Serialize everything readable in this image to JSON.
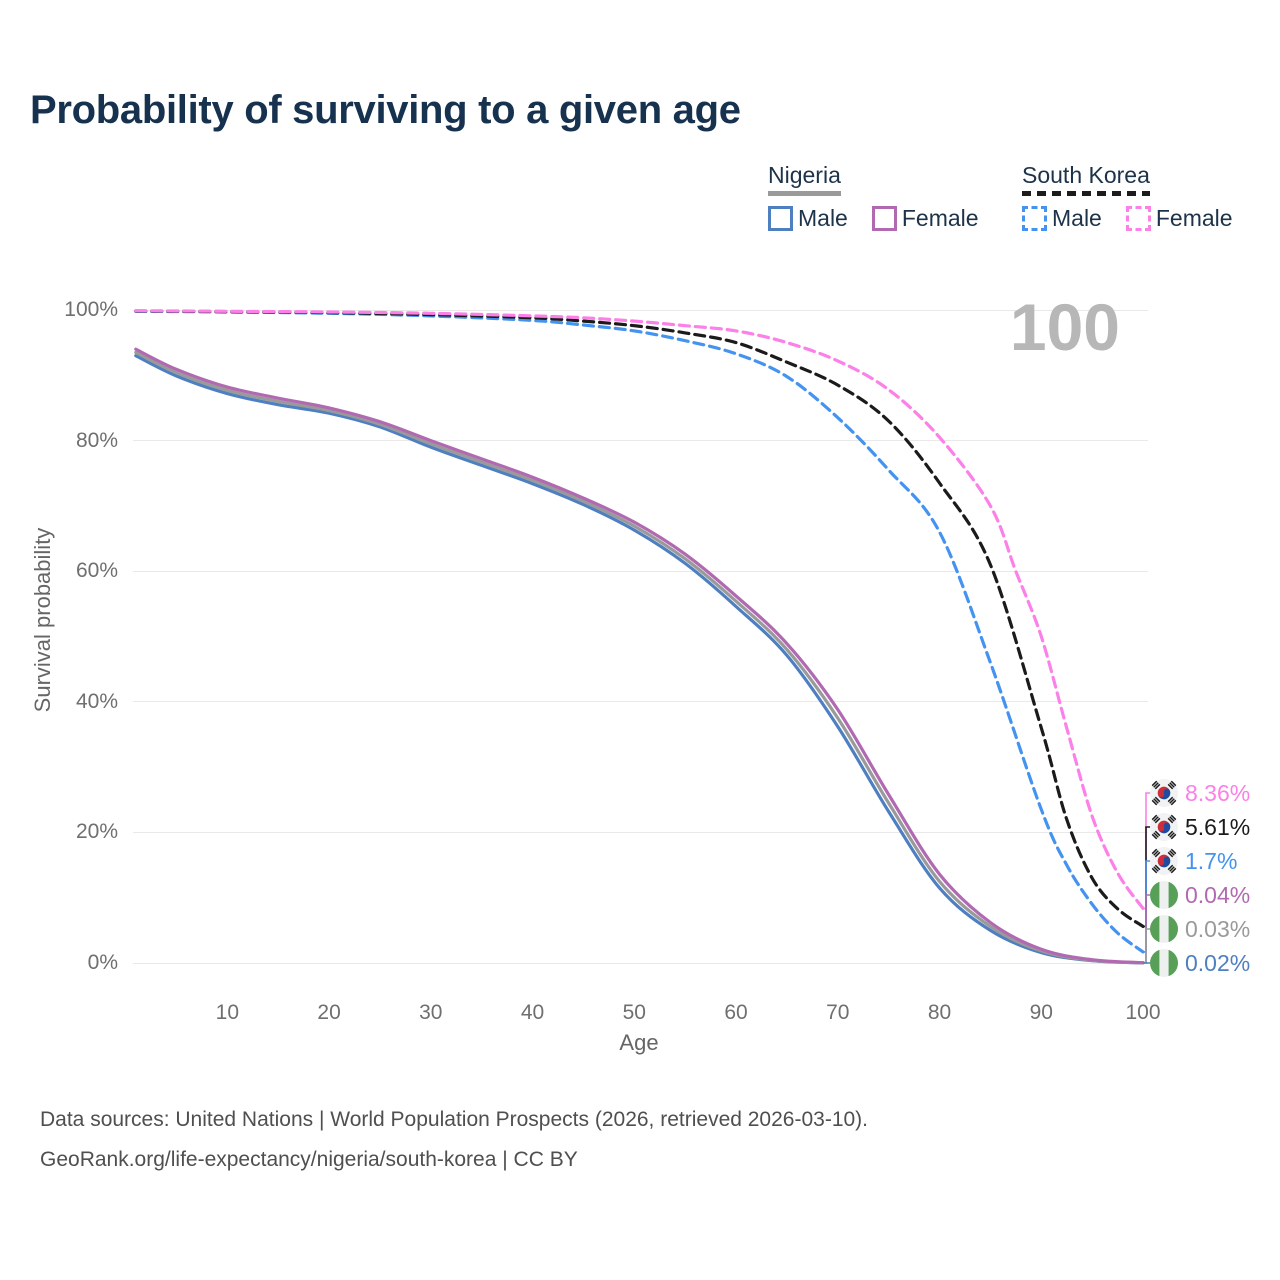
{
  "header": {
    "title": "Probability of surviving to a given age"
  },
  "watermark": {
    "text": "100"
  },
  "legend": {
    "groups": [
      {
        "country": "Nigeria",
        "style": "solid",
        "underline_color": "#9a9a9a",
        "items": [
          {
            "label": "Male",
            "color": "#4e7fc1"
          },
          {
            "label": "Female",
            "color": "#b16ab1"
          }
        ]
      },
      {
        "country": "South Korea",
        "style": "dashed",
        "underline_color": "#1b1b1b",
        "items": [
          {
            "label": "Male",
            "color": "#4493f0"
          },
          {
            "label": "Female",
            "color": "#fb80e8"
          }
        ]
      }
    ]
  },
  "chart_data": {
    "type": "line",
    "title": "Probability of surviving to a given age",
    "xlabel": "Age",
    "ylabel": "Survival probability",
    "grid": "horizontal",
    "x_axis": {
      "label": "Age",
      "range": [
        1,
        100
      ],
      "ticks": [
        {
          "value": 10,
          "label": "10"
        },
        {
          "value": 20,
          "label": "20"
        },
        {
          "value": 30,
          "label": "30"
        },
        {
          "value": 40,
          "label": "40"
        },
        {
          "value": 50,
          "label": "50"
        },
        {
          "value": 60,
          "label": "60"
        },
        {
          "value": 70,
          "label": "70"
        },
        {
          "value": 80,
          "label": "80"
        },
        {
          "value": 90,
          "label": "90"
        },
        {
          "value": 100,
          "label": "100"
        }
      ]
    },
    "y_axis": {
      "label": "Survival probability",
      "range": [
        0,
        100
      ],
      "ticks": [
        {
          "value": 100,
          "label": "100%"
        },
        {
          "value": 80,
          "label": "80%"
        },
        {
          "value": 60,
          "label": "60%"
        },
        {
          "value": 40,
          "label": "40%"
        },
        {
          "value": 20,
          "label": "20%"
        },
        {
          "value": 0,
          "label": "0%"
        }
      ]
    },
    "series": [
      {
        "name": "South Korea — Female",
        "country": "South Korea",
        "sex": "Female",
        "color": "#fb80e8",
        "dashed": true,
        "end_label": "8.36%",
        "flag": "south-korea",
        "points": [
          [
            1,
            99.9
          ],
          [
            10,
            99.8
          ],
          [
            20,
            99.7
          ],
          [
            30,
            99.5
          ],
          [
            40,
            99.1
          ],
          [
            45,
            98.8
          ],
          [
            50,
            98.3
          ],
          [
            55,
            97.6
          ],
          [
            60,
            96.8
          ],
          [
            65,
            95.0
          ],
          [
            70,
            92.2
          ],
          [
            75,
            87.8
          ],
          [
            80,
            80.5
          ],
          [
            85,
            70.0
          ],
          [
            87.5,
            60.0
          ],
          [
            90,
            50.0
          ],
          [
            92.5,
            36.0
          ],
          [
            95,
            22.5
          ],
          [
            97.5,
            13.8
          ],
          [
            100,
            8.36
          ]
        ]
      },
      {
        "name": "South Korea — Both sexes",
        "country": "South Korea",
        "sex": "Both sexes",
        "color": "#1b1b1b",
        "dashed": true,
        "end_label": "5.61%",
        "flag": "south-korea",
        "points": [
          [
            1,
            99.85
          ],
          [
            10,
            99.75
          ],
          [
            20,
            99.6
          ],
          [
            30,
            99.3
          ],
          [
            40,
            98.8
          ],
          [
            45,
            98.3
          ],
          [
            50,
            97.6
          ],
          [
            55,
            96.5
          ],
          [
            60,
            95.0
          ],
          [
            65,
            92.0
          ],
          [
            70,
            88.5
          ],
          [
            75,
            83.0
          ],
          [
            80,
            73.5
          ],
          [
            85,
            61.0
          ],
          [
            90,
            36.0
          ],
          [
            92.5,
            22.0
          ],
          [
            95,
            13.0
          ],
          [
            97.5,
            8.3
          ],
          [
            100,
            5.61
          ]
        ]
      },
      {
        "name": "South Korea — Male",
        "country": "South Korea",
        "sex": "Male",
        "color": "#4493f0",
        "dashed": true,
        "end_label": "1.7%",
        "flag": "south-korea",
        "points": [
          [
            1,
            99.8
          ],
          [
            10,
            99.7
          ],
          [
            20,
            99.5
          ],
          [
            30,
            99.1
          ],
          [
            40,
            98.4
          ],
          [
            45,
            97.7
          ],
          [
            50,
            96.8
          ],
          [
            55,
            95.3
          ],
          [
            60,
            93.3
          ],
          [
            65,
            89.8
          ],
          [
            70,
            83.5
          ],
          [
            75,
            75.5
          ],
          [
            80,
            66.0
          ],
          [
            85,
            46.0
          ],
          [
            90,
            23.5
          ],
          [
            92.5,
            15.0
          ],
          [
            95,
            9.0
          ],
          [
            97.5,
            4.6
          ],
          [
            100,
            1.7
          ]
        ]
      },
      {
        "name": "Nigeria — Female",
        "country": "Nigeria",
        "sex": "Female",
        "color": "#b16ab1",
        "dashed": false,
        "end_label": "0.04%",
        "flag": "nigeria",
        "points": [
          [
            1,
            94.0
          ],
          [
            5,
            90.9
          ],
          [
            10,
            88.2
          ],
          [
            15,
            86.5
          ],
          [
            20,
            85.0
          ],
          [
            25,
            82.9
          ],
          [
            30,
            80.0
          ],
          [
            35,
            77.2
          ],
          [
            40,
            74.4
          ],
          [
            45,
            71.2
          ],
          [
            50,
            67.5
          ],
          [
            55,
            62.6
          ],
          [
            60,
            56.2
          ],
          [
            65,
            48.9
          ],
          [
            70,
            38.8
          ],
          [
            75,
            25.8
          ],
          [
            80,
            13.6
          ],
          [
            85,
            6.2
          ],
          [
            90,
            2.1
          ],
          [
            95,
            0.5
          ],
          [
            100,
            0.04
          ]
        ]
      },
      {
        "name": "Nigeria — Both sexes",
        "country": "Nigeria",
        "sex": "Both sexes",
        "color": "#9a9a9a",
        "dashed": false,
        "end_label": "0.03%",
        "flag": "nigeria",
        "points": [
          [
            1,
            93.5
          ],
          [
            5,
            90.4
          ],
          [
            10,
            87.7
          ],
          [
            15,
            86.0
          ],
          [
            20,
            84.6
          ],
          [
            25,
            82.5
          ],
          [
            30,
            79.5
          ],
          [
            35,
            76.7
          ],
          [
            40,
            73.9
          ],
          [
            45,
            70.7
          ],
          [
            50,
            66.9
          ],
          [
            55,
            61.9
          ],
          [
            60,
            55.4
          ],
          [
            65,
            48.0
          ],
          [
            70,
            37.5
          ],
          [
            75,
            24.5
          ],
          [
            80,
            12.5
          ],
          [
            85,
            5.6
          ],
          [
            90,
            1.85
          ],
          [
            95,
            0.4
          ],
          [
            100,
            0.03
          ]
        ]
      },
      {
        "name": "Nigeria — Male",
        "country": "Nigeria",
        "sex": "Male",
        "color": "#4e7fc1",
        "dashed": false,
        "end_label": "0.02%",
        "flag": "nigeria",
        "points": [
          [
            1,
            93.0
          ],
          [
            5,
            89.9
          ],
          [
            10,
            87.2
          ],
          [
            15,
            85.5
          ],
          [
            20,
            84.2
          ],
          [
            25,
            82.1
          ],
          [
            30,
            79.0
          ],
          [
            35,
            76.2
          ],
          [
            40,
            73.4
          ],
          [
            45,
            70.2
          ],
          [
            50,
            66.3
          ],
          [
            55,
            61.2
          ],
          [
            60,
            54.6
          ],
          [
            65,
            47.1
          ],
          [
            70,
            36.2
          ],
          [
            75,
            23.2
          ],
          [
            80,
            11.5
          ],
          [
            85,
            5.0
          ],
          [
            90,
            1.6
          ],
          [
            95,
            0.35
          ],
          [
            100,
            0.02
          ]
        ]
      }
    ]
  },
  "footer": {
    "line1": "Data sources: United Nations | World Population Prospects (2026, retrieved 2026-03-10).",
    "line2": "GeoRank.org/life-expectancy/nigeria/south-korea | CC BY"
  }
}
